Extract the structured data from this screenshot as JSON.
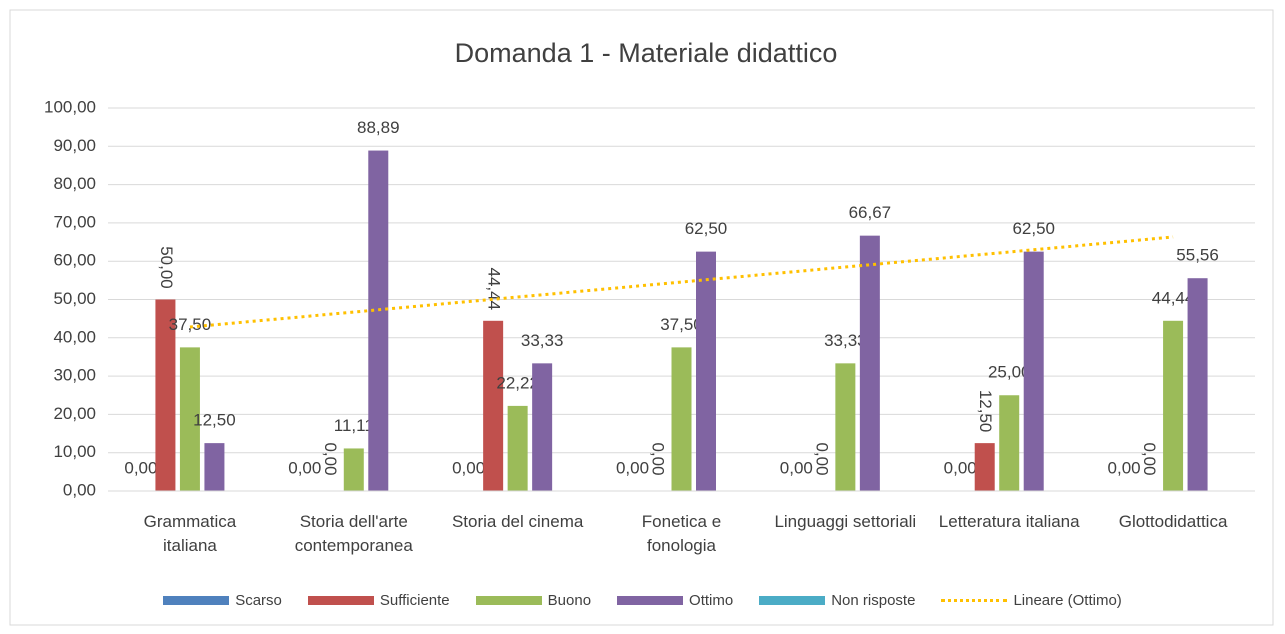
{
  "chart_data": {
    "type": "bar",
    "title": "Domanda 1 - Materiale didattico",
    "categories": [
      "Grammatica italiana",
      "Storia dell'arte contemporanea",
      "Storia del cinema",
      "Fonetica e fonologia",
      "Linguaggi settoriali",
      "Letteratura italiana",
      "Glottodidattica"
    ],
    "series": [
      {
        "name": "Scarso",
        "color": "#4f81bd",
        "values": [
          0,
          0,
          0,
          0,
          0,
          0,
          0
        ],
        "value_labels": [
          "0,00",
          "0,00",
          "0,00",
          "0,00",
          "0,00",
          "0,00",
          "0,00"
        ]
      },
      {
        "name": "Sufficiente",
        "color": "#c0504d",
        "values": [
          50,
          0,
          44.44,
          0,
          0,
          12.5,
          0
        ],
        "value_labels": [
          "50,00",
          "0,00",
          "44,44",
          "0,00",
          "0,00",
          "12,50",
          "0,00"
        ],
        "rotated_labels": true
      },
      {
        "name": "Buono",
        "color": "#9bbb59",
        "values": [
          37.5,
          11.11,
          22.22,
          37.5,
          33.33,
          25,
          44.44
        ],
        "value_labels": [
          "37,50",
          "11,11",
          "22,22",
          "37,50",
          "33,33",
          "25,00",
          "44,44"
        ]
      },
      {
        "name": "Ottimo",
        "color": "#8064a2",
        "values": [
          12.5,
          88.89,
          33.33,
          62.5,
          66.67,
          62.5,
          55.56
        ],
        "value_labels": [
          "12,50",
          "88,89",
          "33,33",
          "62,50",
          "66,67",
          "62,50",
          "55,56"
        ]
      },
      {
        "name": "Non risposte",
        "color": "#4bacc6",
        "values": [
          0,
          0,
          0,
          0,
          0,
          0,
          0
        ]
      }
    ],
    "trendline": {
      "name": "Lineare (Ottimo)",
      "series": 3,
      "color": "#ffc000"
    },
    "ylim": [
      0,
      100
    ],
    "yticks": [
      {
        "value": 0,
        "label": "0,00"
      },
      {
        "value": 10,
        "label": "10,00"
      },
      {
        "value": 20,
        "label": "20,00"
      },
      {
        "value": 30,
        "label": "30,00"
      },
      {
        "value": 40,
        "label": "40,00"
      },
      {
        "value": 50,
        "label": "50,00"
      },
      {
        "value": 60,
        "label": "60,00"
      },
      {
        "value": 70,
        "label": "70,00"
      },
      {
        "value": 80,
        "label": "80,00"
      },
      {
        "value": 90,
        "label": "90,00"
      },
      {
        "value": 100,
        "label": "100,00"
      }
    ],
    "grid": true
  }
}
